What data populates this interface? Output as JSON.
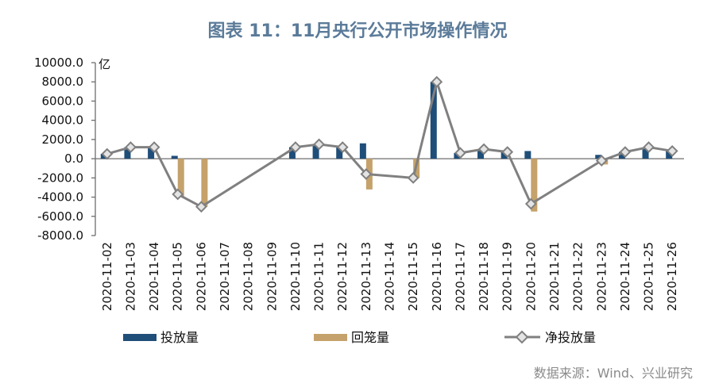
{
  "source": "数据来源：Wind、兴业研究",
  "chart_data": {
    "type": "bar",
    "title": "图表 11：11月央行公开市场操作情况",
    "xlabel": "",
    "ylabel": "亿",
    "ylim": [
      -8000,
      10000
    ],
    "yticks": [
      10000,
      8000,
      6000,
      4000,
      2000,
      0,
      -2000,
      -4000,
      -6000,
      -8000
    ],
    "ytick_labels": [
      "10000.0",
      "8000.0",
      "6000.0",
      "4000.0",
      "2000.0",
      "0.0",
      "-2000.0",
      "-4000.0",
      "-6000.0",
      "-8000.0"
    ],
    "grid": false,
    "legend": "bottom",
    "categories": [
      "2020-11-02",
      "2020-11-03",
      "2020-11-04",
      "2020-11-05",
      "2020-11-06",
      "2020-11-07",
      "2020-11-08",
      "2020-11-09",
      "2020-11-10",
      "2020-11-11",
      "2020-11-12",
      "2020-11-13",
      "2020-11-14",
      "2020-11-15",
      "2020-11-16",
      "2020-11-17",
      "2020-11-18",
      "2020-11-19",
      "2020-11-20",
      "2020-11-21",
      "2020-11-22",
      "2020-11-23",
      "2020-11-24",
      "2020-11-25",
      "2020-11-26"
    ],
    "series": [
      {
        "name": "投放量",
        "type": "bar",
        "color": "#1f4e79",
        "values": [
          500,
          1200,
          1200,
          300,
          null,
          null,
          null,
          null,
          1200,
          1500,
          1200,
          1600,
          null,
          null,
          8000,
          600,
          1000,
          700,
          800,
          null,
          null,
          400,
          700,
          1200,
          800
        ]
      },
      {
        "name": "回笼量",
        "type": "bar",
        "color": "#c5a26b",
        "values": [
          null,
          null,
          null,
          -4000,
          -5000,
          null,
          null,
          null,
          null,
          null,
          null,
          -3200,
          null,
          -2000,
          null,
          null,
          null,
          null,
          -5500,
          null,
          null,
          -600,
          null,
          null,
          null
        ]
      },
      {
        "name": "净投放量",
        "type": "line",
        "color": "#808080",
        "marker_fill": "#e4e4e4",
        "values": [
          500,
          1200,
          1200,
          -3700,
          -5000,
          null,
          null,
          null,
          1200,
          1500,
          1200,
          -1600,
          null,
          -2000,
          8000,
          600,
          1000,
          700,
          -4700,
          null,
          null,
          -200,
          700,
          1200,
          800
        ]
      }
    ]
  }
}
